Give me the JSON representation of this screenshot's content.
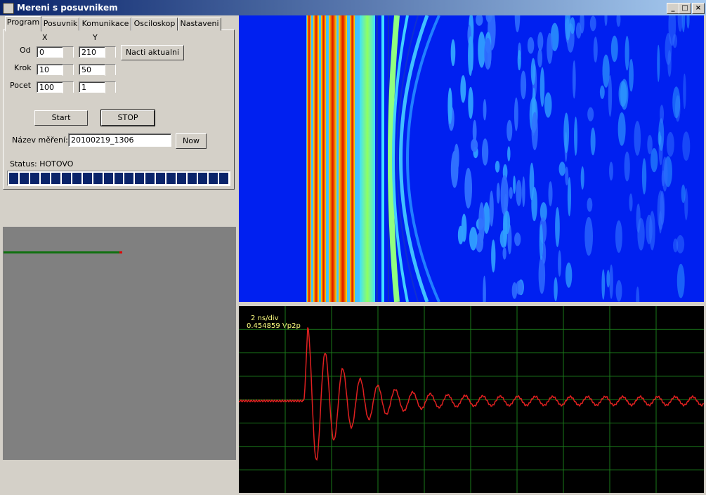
{
  "window": {
    "title": "Mereni s posuvnikem"
  },
  "tabs": [
    "Program",
    "Posuvnik",
    "Komunikace",
    "Osciloskop",
    "Nastaveni"
  ],
  "form": {
    "col_x": "X",
    "col_y": "Y",
    "rows": [
      {
        "label": "Od",
        "x": "0",
        "y": "210"
      },
      {
        "label": "Krok",
        "x": "10",
        "y": "50"
      },
      {
        "label": "Pocet",
        "x": "100",
        "y": "1"
      }
    ]
  },
  "buttons": {
    "load": "Nacti aktualni",
    "start": "Start",
    "stop": "STOP",
    "now": "Now"
  },
  "name_field": {
    "label": "Název měření:",
    "value": "20100219_1306"
  },
  "status": "Status: HOTOVO",
  "scope": {
    "timebase": "2 ns/div",
    "amplitude": "0.454859 Vp2p"
  }
}
